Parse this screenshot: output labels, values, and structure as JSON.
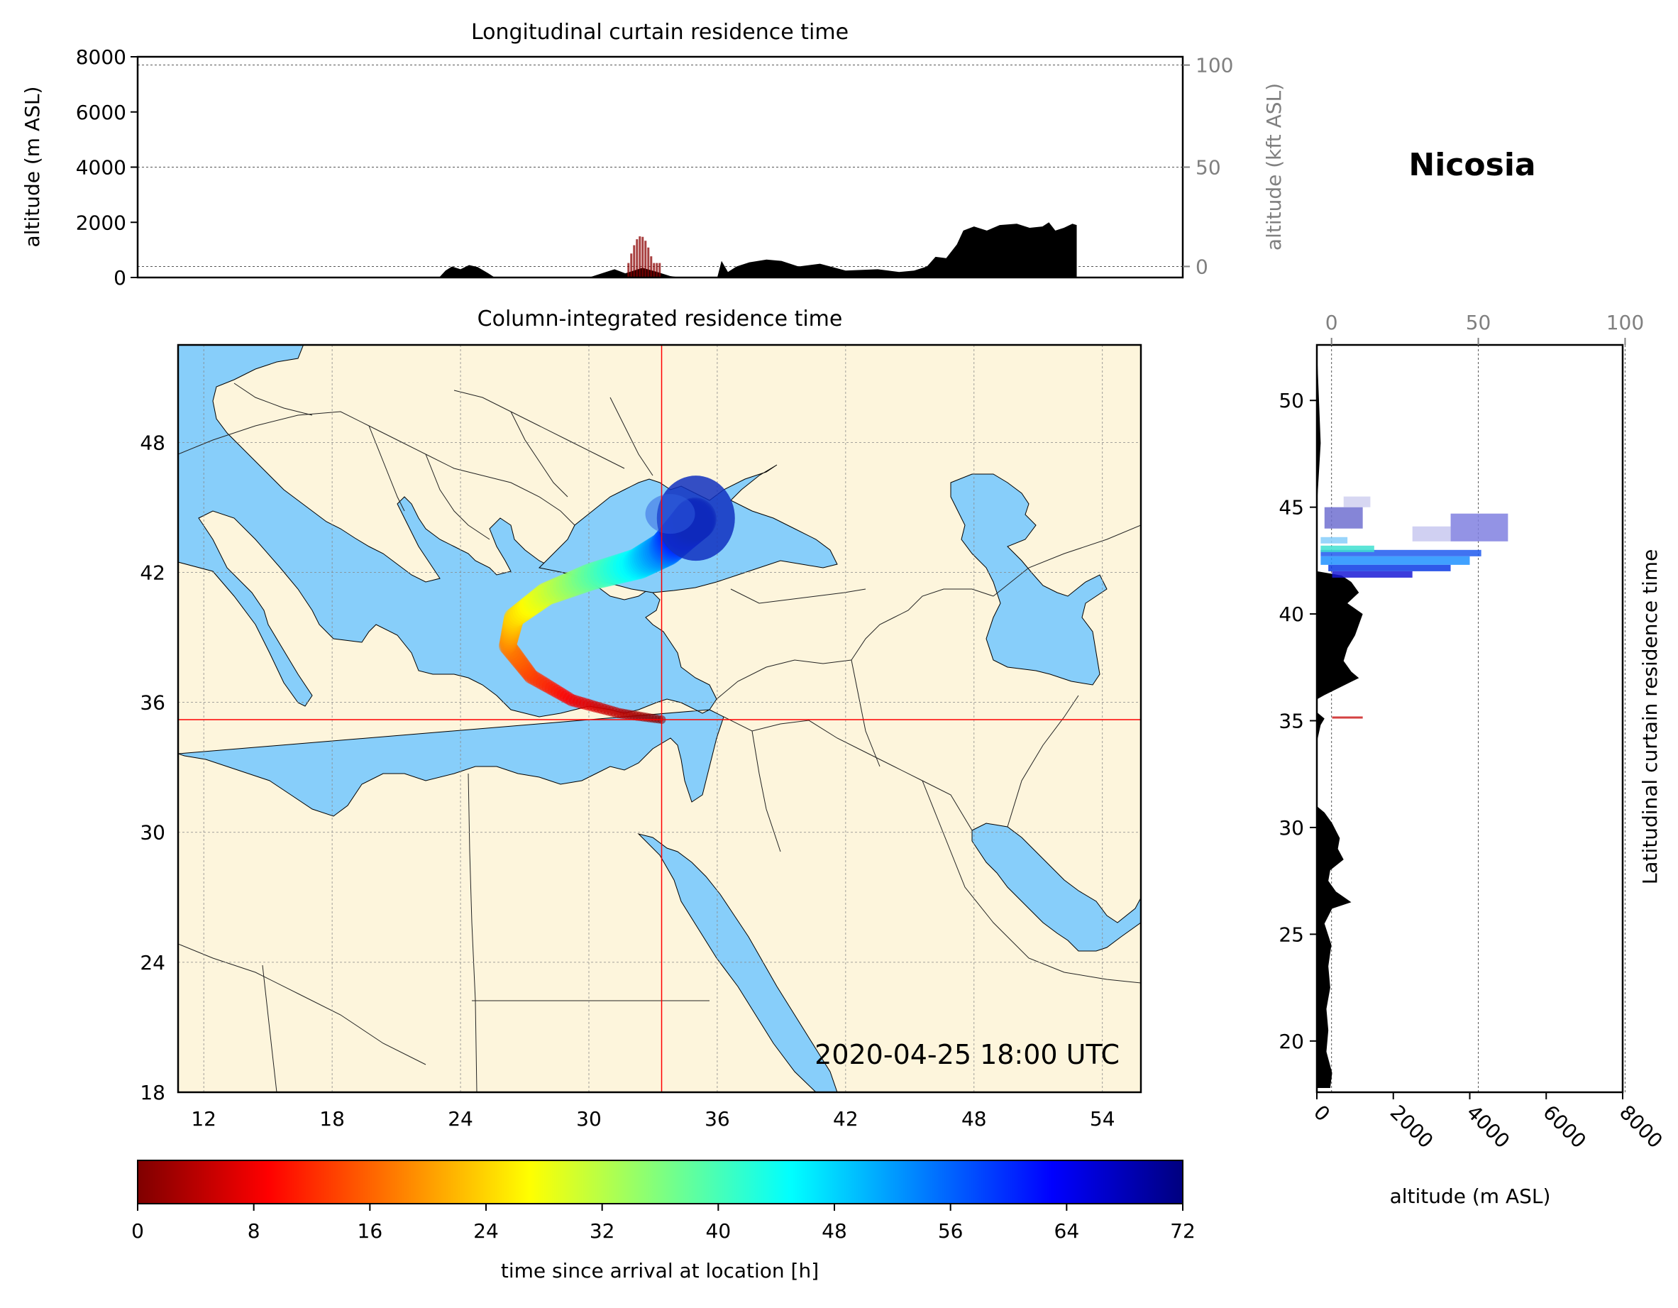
{
  "station": "Nicosia",
  "valid_time": "2020-04-25 18:00 UTC",
  "colors": {
    "sea": "#87CEFA",
    "land": "#FDF5DC",
    "crosshair": "#FF0000",
    "terrain": "#000000",
    "secondary_axis": "#808080"
  },
  "chart_data": [
    {
      "id": "longitudinal_curtain",
      "type": "area",
      "title": "Longitudinal curtain residence time",
      "ylabel": "altitude (m ASL)",
      "ylabel_right": "altitude (kft ASL)",
      "ylim": [
        0,
        8000
      ],
      "yticks": [
        "0",
        "2000",
        "4000",
        "6000",
        "8000"
      ],
      "yticks_right": [
        "0",
        "50",
        "100"
      ],
      "series": [
        {
          "kind": "terrain",
          "x": [
            20.5,
            23.0,
            23.3,
            23.6,
            24.0,
            24.4,
            24.8,
            25.3,
            25.6,
            30.0,
            31.2,
            31.7,
            32.5,
            33.2,
            33.8,
            34.3,
            36.0,
            36.2,
            36.5,
            36.9,
            37.5,
            38.3,
            39.0,
            39.8,
            40.8,
            42.0,
            43.5,
            44.5,
            45.2,
            45.8,
            46.2,
            46.7,
            47.2,
            47.5,
            48.0,
            48.6,
            49.2,
            50.0,
            50.6,
            51.2,
            51.5,
            51.8,
            52.2,
            52.6,
            52.8
          ],
          "y": [
            0,
            0,
            250,
            400,
            300,
            450,
            380,
            150,
            0,
            0,
            300,
            150,
            350,
            200,
            50,
            0,
            0,
            600,
            200,
            400,
            550,
            650,
            600,
            400,
            500,
            250,
            300,
            200,
            250,
            400,
            750,
            700,
            1200,
            1700,
            1850,
            1700,
            1900,
            1950,
            1800,
            1850,
            2000,
            1700,
            1800,
            1950,
            1900
          ]
        },
        {
          "kind": "residence",
          "x_range": [
            31.8,
            33.3
          ],
          "y_range": [
            0,
            1500
          ],
          "color": "#8B0000"
        }
      ]
    },
    {
      "id": "column_integrated",
      "type": "heatmap",
      "title": "Column-integrated residence time",
      "xlim": [
        10.8,
        55.8
      ],
      "ylim": [
        18,
        52.5
      ],
      "xticks": [
        "12",
        "18",
        "24",
        "30",
        "36",
        "42",
        "48",
        "54"
      ],
      "yticks": [
        "18",
        "24",
        "30",
        "36",
        "42",
        "48"
      ],
      "crosshair": {
        "lon": 33.4,
        "lat": 35.2
      },
      "plume": [
        {
          "lon": 33.4,
          "lat": 35.2,
          "hours": 0
        },
        {
          "lon": 31.4,
          "lat": 35.5,
          "hours": 4
        },
        {
          "lon": 29.2,
          "lat": 36.1,
          "hours": 8
        },
        {
          "lon": 27.3,
          "lat": 37.2,
          "hours": 13
        },
        {
          "lon": 26.2,
          "lat": 38.6,
          "hours": 18
        },
        {
          "lon": 26.5,
          "lat": 39.9,
          "hours": 24
        },
        {
          "lon": 28.0,
          "lat": 41.0,
          "hours": 30
        },
        {
          "lon": 30.1,
          "lat": 41.8,
          "hours": 38
        },
        {
          "lon": 32.3,
          "lat": 42.4,
          "hours": 46
        },
        {
          "lon": 33.6,
          "lat": 43.1,
          "hours": 54
        },
        {
          "lon": 34.4,
          "lat": 43.9,
          "hours": 62
        },
        {
          "lon": 35.0,
          "lat": 44.5,
          "hours": 70
        }
      ]
    },
    {
      "id": "latitudinal_curtain",
      "type": "area",
      "ylabel": "Latitudinal curtain residence time",
      "xlabel": "altitude (m ASL)",
      "xlim": [
        0,
        8000
      ],
      "ylim": [
        17.6,
        52.6
      ],
      "xticks": [
        "0",
        "2000",
        "4000",
        "6000",
        "8000"
      ],
      "xticks_top": [
        "0",
        "50",
        "100"
      ],
      "yticks": [
        "20",
        "25",
        "30",
        "35",
        "40",
        "45",
        "50"
      ],
      "series": [
        {
          "kind": "terrain",
          "lat": [
            17.8,
            18.5,
            19.5,
            20.5,
            21.5,
            22.5,
            23.5,
            24.5,
            25.5,
            26.2,
            26.5,
            27.0,
            27.5,
            28.0,
            28.5,
            29.0,
            29.5,
            30.2,
            30.7,
            31.0,
            32.0,
            34.0,
            34.8,
            35.1,
            35.4,
            36.0,
            36.2,
            37.0,
            37.3,
            37.8,
            38.4,
            39.0,
            39.5,
            40.0,
            40.5,
            41.0,
            41.5,
            41.8,
            42.0,
            43.0,
            45.0,
            48.0,
            52.5
          ],
          "alt": [
            350,
            400,
            250,
            300,
            250,
            350,
            300,
            380,
            200,
            400,
            900,
            500,
            300,
            350,
            700,
            550,
            600,
            400,
            200,
            0,
            0,
            0,
            100,
            200,
            0,
            0,
            200,
            1100,
            900,
            700,
            800,
            1000,
            1100,
            1200,
            800,
            1100,
            900,
            650,
            0,
            0,
            0,
            100,
            0
          ]
        },
        {
          "kind": "residence_bands",
          "bands": [
            {
              "lat": [
                42.7,
                43.0
              ],
              "alt": [
                100,
                4300
              ],
              "color": "#1E5AEF"
            },
            {
              "lat": [
                42.3,
                42.7
              ],
              "alt": [
                100,
                4000
              ],
              "color": "#1E90FF"
            },
            {
              "lat": [
                42.0,
                42.3
              ],
              "alt": [
                300,
                3500
              ],
              "color": "#0B3BE5"
            },
            {
              "lat": [
                41.7,
                42.0
              ],
              "alt": [
                400,
                2500
              ],
              "color": "#1A1AD6"
            },
            {
              "lat": [
                42.9,
                43.2
              ],
              "alt": [
                100,
                1500
              ],
              "color": "#40E0D0"
            },
            {
              "lat": [
                43.3,
                43.6
              ],
              "alt": [
                100,
                800
              ],
              "color": "#87CEFA"
            },
            {
              "lat": [
                43.4,
                44.7
              ],
              "alt": [
                3500,
                5000
              ],
              "color": "#8080E0"
            },
            {
              "lat": [
                43.4,
                44.1
              ],
              "alt": [
                2500,
                3500
              ],
              "color": "#C8C8F0"
            },
            {
              "lat": [
                44.0,
                45.0
              ],
              "alt": [
                200,
                1200
              ],
              "color": "#7070D0"
            },
            {
              "lat": [
                45.0,
                45.5
              ],
              "alt": [
                700,
                1400
              ],
              "color": "#D0D0F0"
            },
            {
              "lat": [
                35.1,
                35.2
              ],
              "alt": [
                400,
                1200
              ],
              "color": "#CC2020"
            }
          ]
        }
      ]
    },
    {
      "id": "colorbar",
      "type": "heatmap",
      "xlabel": "time since arrival at location [h]",
      "range": [
        0,
        72
      ],
      "ticks": [
        "0",
        "8",
        "16",
        "24",
        "32",
        "40",
        "48",
        "56",
        "64",
        "72"
      ],
      "colormap": "jet_r"
    }
  ]
}
